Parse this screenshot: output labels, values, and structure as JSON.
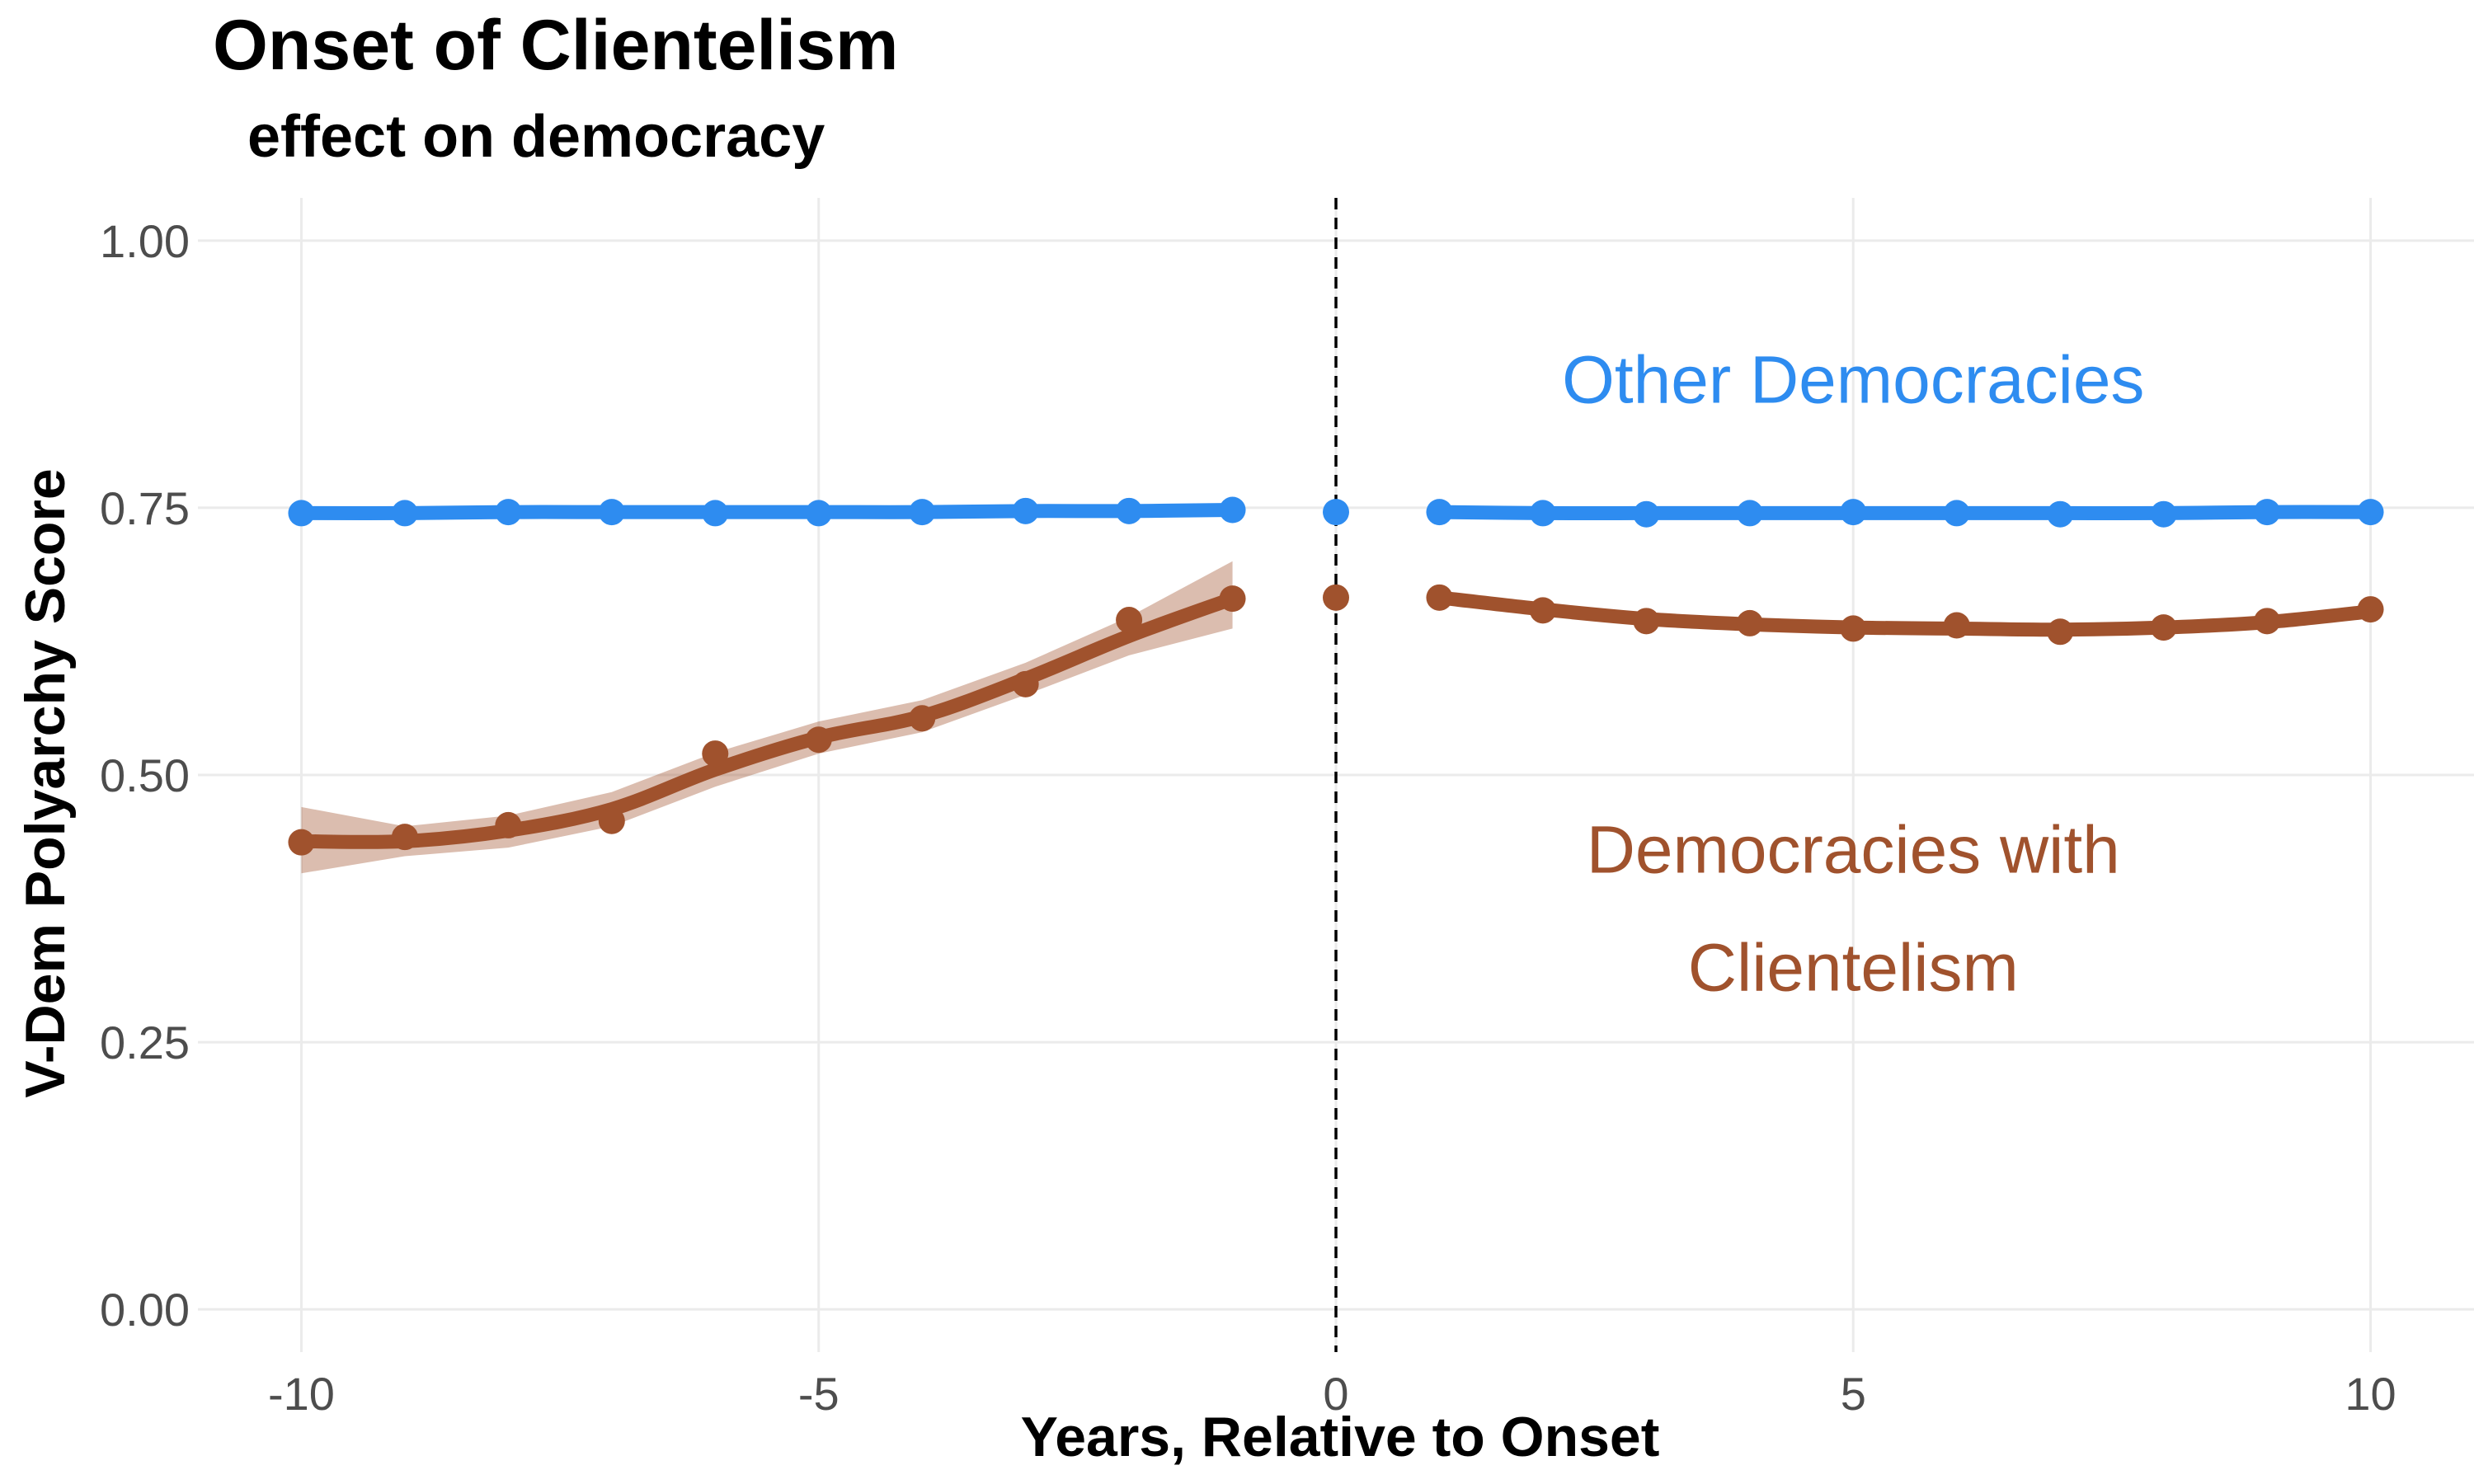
{
  "chart_data": {
    "type": "line",
    "title": "Onset of Clientelism",
    "subtitle": "effect on democracy",
    "xlabel": "Years, Relative to Onset",
    "ylabel": "V-Dem Polyarchy Score",
    "xlim": [
      -11,
      11
    ],
    "ylim": [
      -0.04,
      1.04
    ],
    "x_ticks": [
      -10,
      -5,
      0,
      5,
      10
    ],
    "x_tick_labels": [
      "-10",
      "-5",
      "0",
      "5",
      "10"
    ],
    "y_ticks": [
      0,
      0.25,
      0.5,
      0.75,
      1.0
    ],
    "y_tick_labels": [
      "0.00",
      "0.25",
      "0.50",
      "0.75",
      "1.00"
    ],
    "grid": true,
    "reference_line": {
      "x": 0,
      "style": "dashed",
      "color": "#000000"
    },
    "series": [
      {
        "color": "#2e8cf0",
        "pre": {
          "x": [
            -10,
            -9,
            -8,
            -7,
            -6,
            -5,
            -4,
            -3,
            -2,
            -1
          ],
          "y": [
            0.745,
            0.745,
            0.746,
            0.746,
            0.745,
            0.745,
            0.746,
            0.747,
            0.747,
            0.748
          ],
          "smooth": [
            0.745,
            0.745,
            0.746,
            0.746,
            0.746,
            0.746,
            0.746,
            0.747,
            0.747,
            0.748
          ]
        },
        "onset": {
          "x": 0,
          "y": 0.746
        },
        "post": {
          "x": [
            1,
            2,
            3,
            4,
            5,
            6,
            7,
            8,
            9,
            10
          ],
          "y": [
            0.746,
            0.745,
            0.744,
            0.745,
            0.746,
            0.745,
            0.744,
            0.744,
            0.746,
            0.746
          ],
          "smooth": [
            0.746,
            0.745,
            0.745,
            0.745,
            0.745,
            0.745,
            0.745,
            0.745,
            0.746,
            0.746
          ]
        }
      },
      {
        "color": "#a0522d",
        "pre": {
          "x": [
            -10,
            -9,
            -8,
            -7,
            -6,
            -5,
            -4,
            -3,
            -2,
            -1
          ],
          "y": [
            0.437,
            0.442,
            0.453,
            0.457,
            0.52,
            0.533,
            0.553,
            0.585,
            0.645,
            0.665
          ],
          "smooth": [
            0.438,
            0.438,
            0.448,
            0.468,
            0.505,
            0.535,
            0.555,
            0.59,
            0.63,
            0.665
          ],
          "ci_low": [
            0.408,
            0.424,
            0.432,
            0.452,
            0.489,
            0.52,
            0.54,
            0.575,
            0.612,
            0.637
          ],
          "ci_high": [
            0.47,
            0.452,
            0.462,
            0.484,
            0.521,
            0.55,
            0.57,
            0.605,
            0.648,
            0.7
          ]
        },
        "onset": {
          "x": 0,
          "y": 0.666
        },
        "post": {
          "x": [
            1,
            2,
            3,
            4,
            5,
            6,
            7,
            8,
            9,
            10
          ],
          "y": [
            0.666,
            0.654,
            0.644,
            0.642,
            0.637,
            0.64,
            0.634,
            0.638,
            0.644,
            0.655
          ],
          "smooth": [
            0.666,
            0.655,
            0.646,
            0.641,
            0.638,
            0.637,
            0.636,
            0.638,
            0.643,
            0.653
          ]
        }
      }
    ],
    "annotations": [
      {
        "text": "Other Democracies",
        "color": "#2e8cf0",
        "x": 5,
        "y": 0.87
      },
      {
        "text": "Democracies with",
        "color": "#a0522d",
        "x": 5,
        "y": 0.43
      },
      {
        "text": "Clientelism",
        "color": "#a0522d",
        "x": 5,
        "y": 0.32
      }
    ]
  }
}
